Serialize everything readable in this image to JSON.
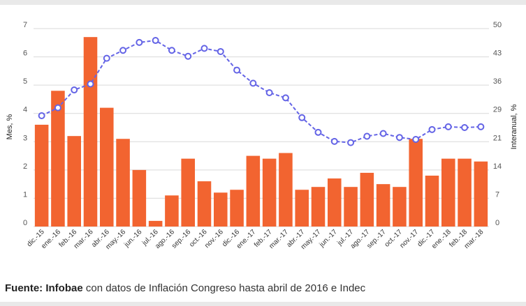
{
  "chart_data": {
    "type": "bar+line",
    "categories": [
      "dic.-15",
      "ene.-16",
      "feb.-16",
      "mar.-16",
      "abr.-16",
      "may.-16",
      "jun.-16",
      "jul.-16",
      "ago.-16",
      "sep.-16",
      "oct.-16",
      "nov.-16",
      "dic.-16",
      "ene.-17",
      "feb.-17",
      "mar.-17",
      "abr.-17",
      "may.-17",
      "jun.-17",
      "jul.-17",
      "ago.-17",
      "sep.-17",
      "oct.-17",
      "nov.-17",
      "dic.-17",
      "ene.-18",
      "feb.-18",
      "mar.-18"
    ],
    "series": [
      {
        "type": "bar",
        "axis": "left",
        "color": "#f26430",
        "values": [
          3.6,
          4.8,
          3.2,
          6.7,
          4.2,
          3.1,
          2.0,
          0.2,
          1.1,
          2.4,
          1.6,
          1.2,
          1.3,
          2.5,
          2.4,
          2.6,
          1.3,
          1.4,
          1.7,
          1.4,
          1.9,
          1.5,
          1.4,
          3.1,
          1.8,
          2.4,
          2.4,
          2.3
        ]
      },
      {
        "type": "line",
        "axis": "right",
        "color": "#6464e6",
        "values": [
          28.0,
          30.0,
          34.5,
          36.0,
          42.5,
          44.5,
          46.5,
          47.0,
          44.5,
          43.0,
          45.0,
          44.2,
          39.5,
          36.2,
          33.8,
          32.5,
          27.5,
          23.8,
          21.5,
          21.2,
          22.8,
          23.5,
          22.5,
          22.0,
          24.5,
          25.2,
          25.0,
          25.2
        ]
      }
    ],
    "ylabel_left": "Mes, %",
    "ylabel_right": "Interanual, %",
    "left_ticks": [
      "0",
      "1",
      "2",
      "3",
      "4",
      "5",
      "6",
      "7"
    ],
    "right_ticks": [
      "0",
      "7",
      "14",
      "21",
      "29",
      "36",
      "43",
      "50"
    ],
    "ylim_left": [
      0,
      7
    ],
    "ylim_right": [
      0,
      50
    ],
    "grid": true
  },
  "source": {
    "label": "Fuente:",
    "brand": "Infobae",
    "text": " con datos de Inflación Congreso hasta abril de 2016 e Indec"
  }
}
